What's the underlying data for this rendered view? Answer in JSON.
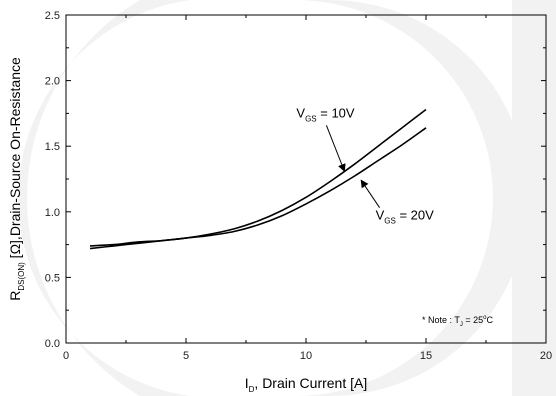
{
  "chart_data": {
    "type": "line",
    "xlabel": {
      "main": "I",
      "sub": "D",
      "rest": ", Drain Current [A]"
    },
    "ylabel": {
      "main": "R",
      "sub": "DS(ON)",
      "rest": " [Ω],Drain-Source On-Resistance"
    },
    "xlim": [
      0,
      20
    ],
    "ylim": [
      0.0,
      2.5
    ],
    "x_ticks": [
      0,
      5,
      10,
      15,
      20
    ],
    "x_tick_labels": [
      "0",
      "5",
      "10",
      "15",
      "20"
    ],
    "y_ticks": [
      0.0,
      0.5,
      1.0,
      1.5,
      2.0,
      2.5
    ],
    "y_tick_labels": [
      "0.0",
      "0.5",
      "1.0",
      "1.5",
      "2.0",
      "2.5"
    ],
    "grid": false,
    "series": [
      {
        "name": "VGS = 10V",
        "label_main": "V",
        "label_sub": "GS",
        "label_rest": " = 10V",
        "x": [
          1,
          2,
          3,
          4,
          5,
          6,
          7,
          8,
          9,
          10,
          11,
          12,
          13,
          14,
          15
        ],
        "y": [
          0.72,
          0.74,
          0.76,
          0.78,
          0.8,
          0.83,
          0.87,
          0.93,
          1.01,
          1.11,
          1.23,
          1.36,
          1.5,
          1.64,
          1.78
        ]
      },
      {
        "name": "VGS = 20V",
        "label_main": "V",
        "label_sub": "GS",
        "label_rest": " = 20V",
        "x": [
          1,
          2,
          3,
          4,
          5,
          6,
          7,
          8,
          9,
          10,
          11,
          12,
          13,
          14,
          15
        ],
        "y": [
          0.74,
          0.75,
          0.77,
          0.78,
          0.8,
          0.82,
          0.85,
          0.9,
          0.97,
          1.06,
          1.16,
          1.27,
          1.39,
          1.51,
          1.64
        ]
      }
    ],
    "annotations": [
      {
        "series": 0,
        "text_x": 9.6,
        "text_y": 1.72,
        "arrow_to_x": 11.6,
        "arrow_to_y": 1.31
      },
      {
        "series": 1,
        "text_x": 12.9,
        "text_y": 0.94,
        "arrow_to_x": 12.3,
        "arrow_to_y": 1.24
      }
    ],
    "note": {
      "prefix": "* Note : T",
      "sub": "J",
      "middle": " = 25",
      "sup": "o",
      "suffix": "C"
    },
    "colors": {
      "line": "#000000",
      "background": "#ffffff",
      "watermark": "#f2f2f2"
    }
  }
}
